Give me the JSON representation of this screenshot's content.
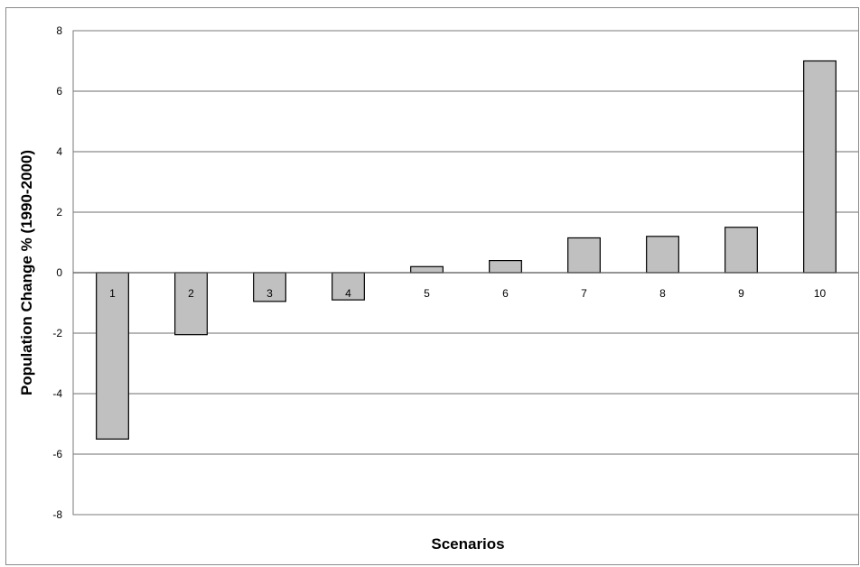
{
  "chart_data": {
    "type": "bar",
    "title": "",
    "xlabel": "Scenarios",
    "ylabel": "Population Change % (1990-2000)",
    "categories": [
      "1",
      "2",
      "3",
      "4",
      "5",
      "6",
      "7",
      "8",
      "9",
      "10"
    ],
    "values": [
      -5.5,
      -2.05,
      -0.95,
      -0.9,
      0.2,
      0.4,
      1.15,
      1.2,
      1.5,
      7.0
    ],
    "ylim": [
      -8,
      8
    ],
    "yticks": [
      -8,
      -6,
      -4,
      -2,
      0,
      2,
      4,
      6,
      8
    ],
    "grid": true,
    "legend": "none",
    "category_labels_position": "below zero line",
    "colors": {
      "bar_fill": "#c0c0c0",
      "bar_stroke": "#000000",
      "gridline": "#6e6e6e",
      "plot_border": "#7a7a7a"
    }
  }
}
